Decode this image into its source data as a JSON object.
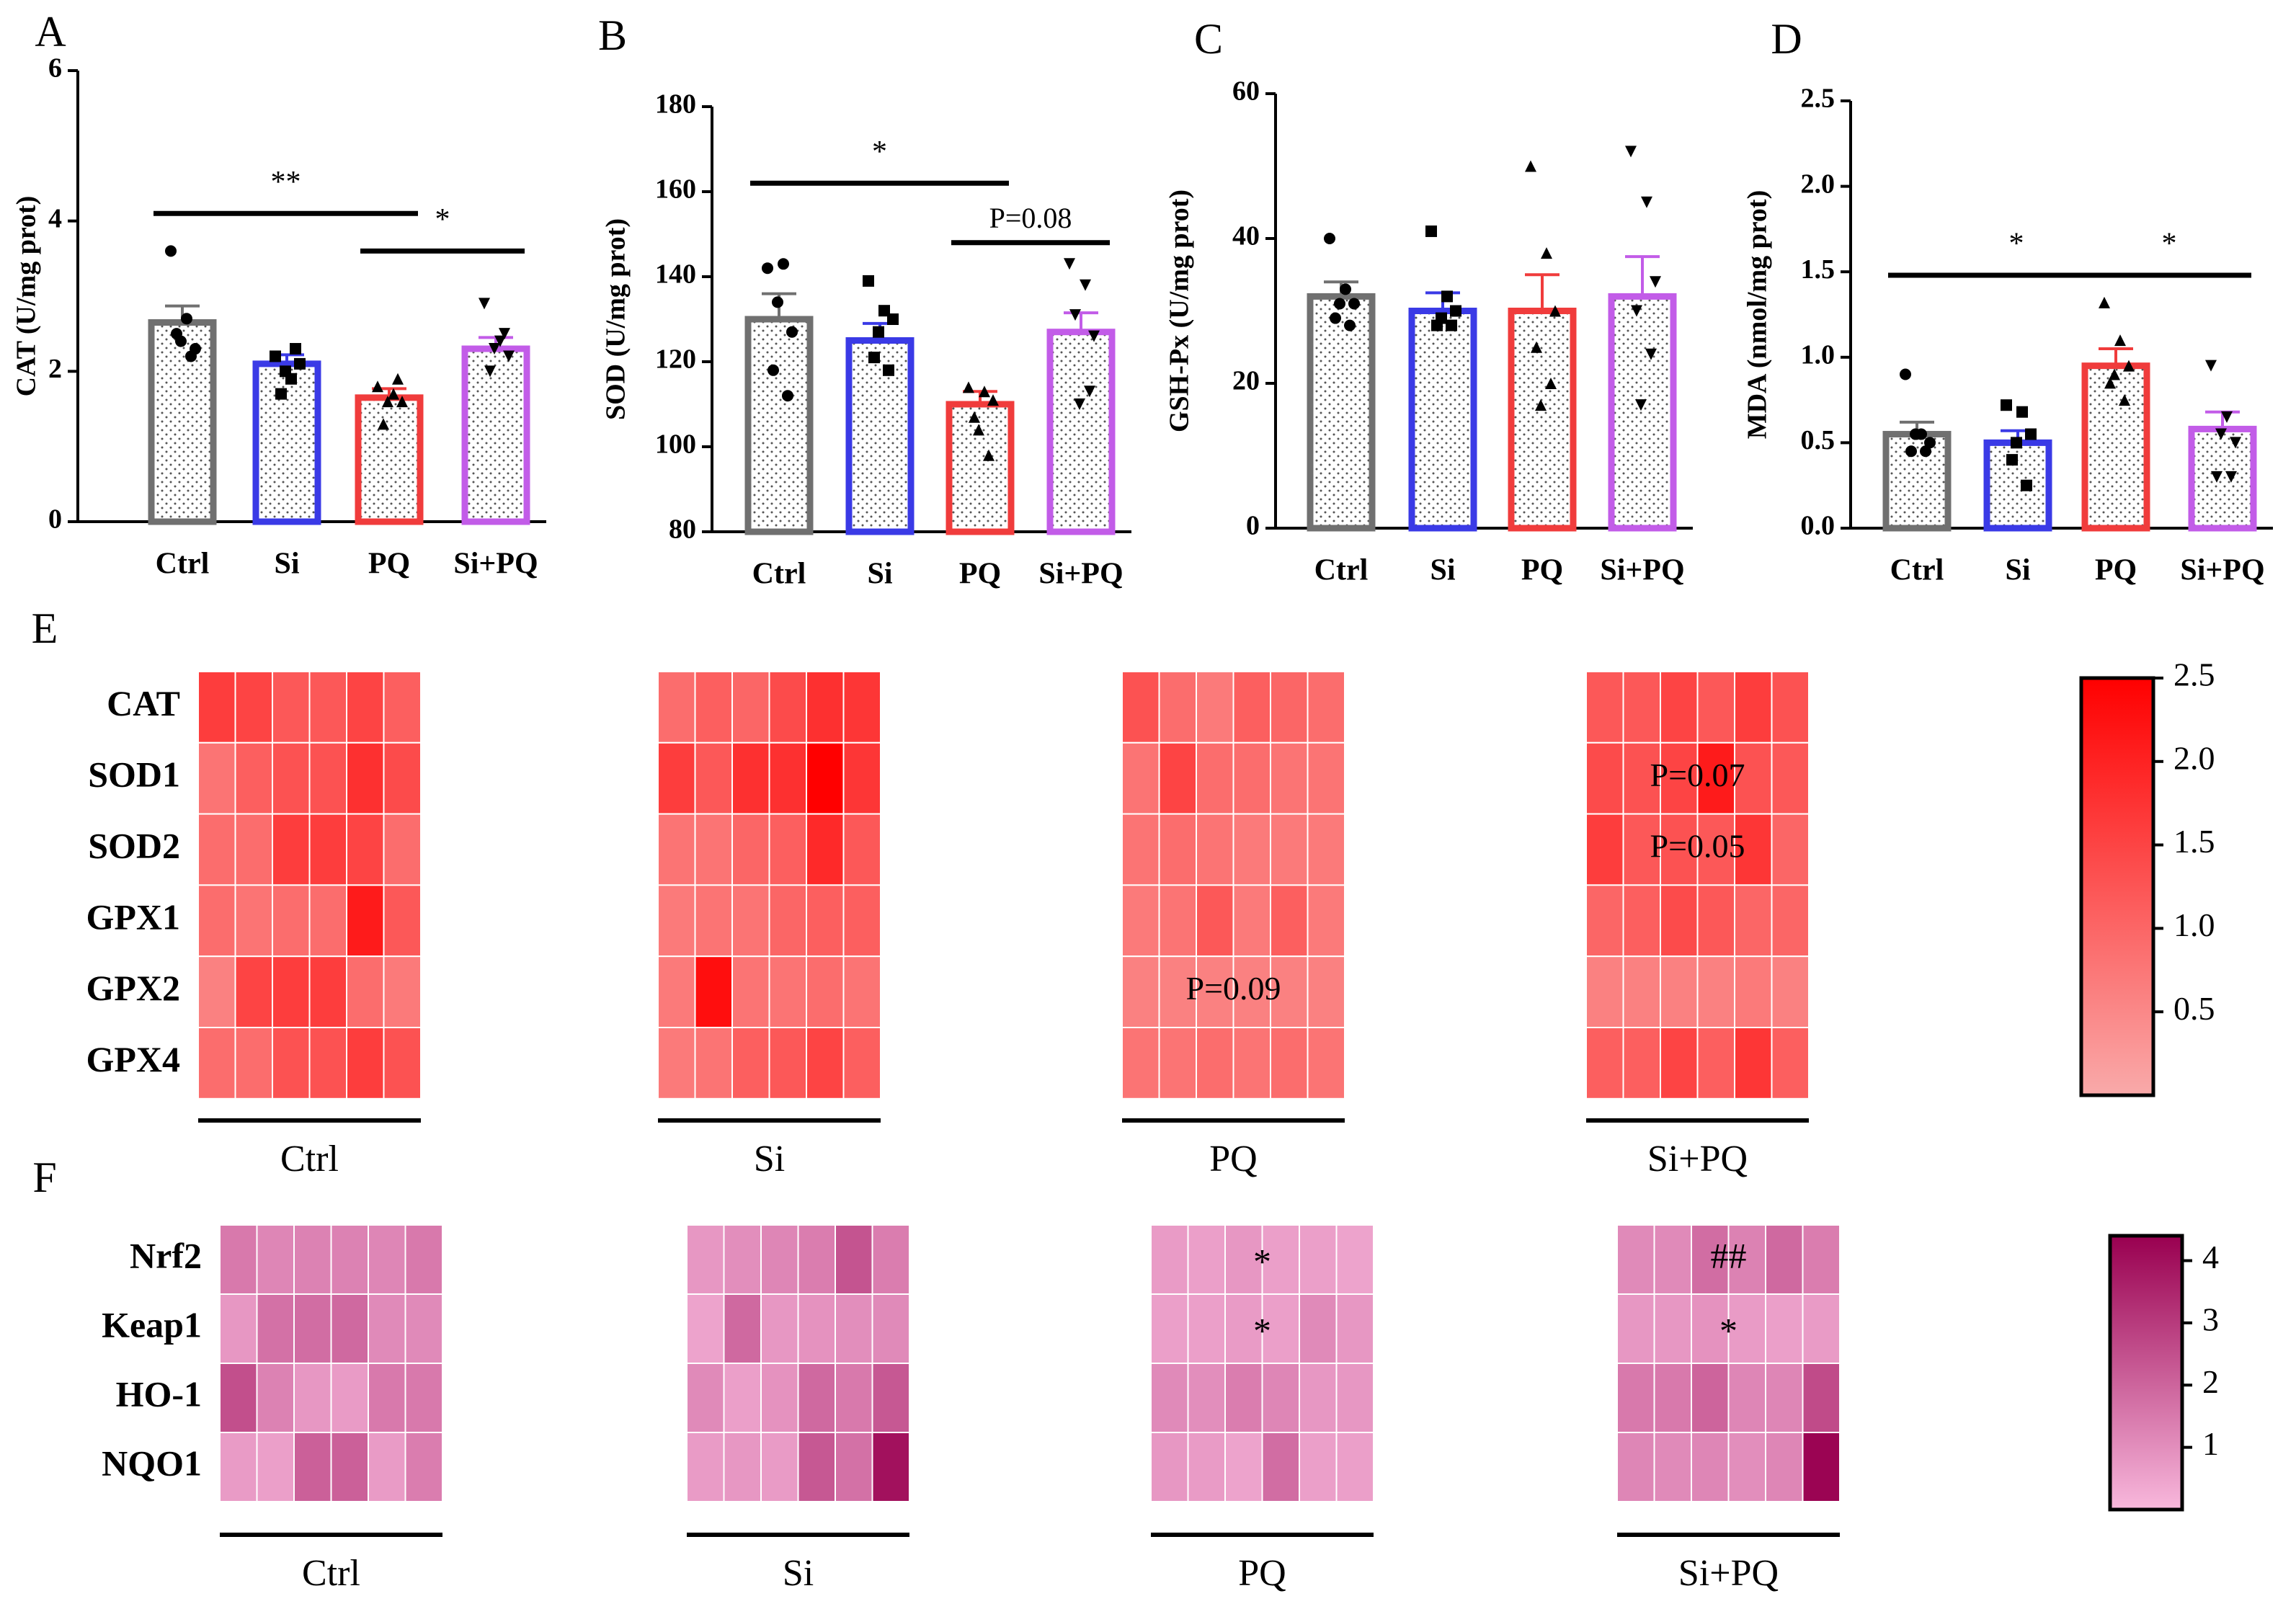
{
  "colors": {
    "Ctrl": "#707070",
    "Si": "#3a3ae6",
    "PQ": "#f03c3c",
    "Si+PQ": "#c25ce8",
    "heatE_low": "#f9aaaa",
    "heatE_high": "#ff0000",
    "heatF_low": "#f8b8dc",
    "heatF_high": "#990050"
  },
  "chart_data": [
    {
      "panel": "A",
      "type": "bar",
      "ylabel": "CAT (U/mg prot)",
      "categories": [
        "Ctrl",
        "Si",
        "PQ",
        "Si+PQ"
      ],
      "values": [
        2.65,
        2.1,
        1.65,
        2.3
      ],
      "sem": [
        0.22,
        0.12,
        0.12,
        0.15
      ],
      "points": [
        [
          3.6,
          2.7,
          2.3,
          2.5,
          2.2,
          2.4
        ],
        [
          2.2,
          1.9,
          2.1,
          1.7,
          2.3,
          2.0
        ],
        [
          1.8,
          1.7,
          1.6,
          1.3,
          1.9,
          1.6
        ],
        [
          2.9,
          2.4,
          2.2,
          2.0,
          2.5,
          2.3
        ]
      ],
      "ylim": [
        0,
        6
      ],
      "yticks": [
        0,
        2,
        4,
        6
      ],
      "yticklabels": [
        "0",
        "2",
        "4",
        "6"
      ],
      "annotations": [
        {
          "from": 0,
          "to": 2,
          "y": 4.1,
          "label": "**"
        },
        {
          "from": 2,
          "to": 3,
          "y": 3.6,
          "label": "*"
        }
      ]
    },
    {
      "panel": "B",
      "type": "bar",
      "ylabel": "SOD (U/mg prot)",
      "categories": [
        "Ctrl",
        "Si",
        "PQ",
        "Si+PQ"
      ],
      "values": [
        130,
        125,
        110,
        127
      ],
      "sem": [
        6,
        4,
        3,
        4.5
      ],
      "points": [
        [
          142,
          143,
          127,
          118,
          112,
          134
        ],
        [
          139,
          132,
          130,
          121,
          118,
          127
        ],
        [
          114,
          113,
          111,
          107,
          98,
          104
        ],
        [
          143,
          138,
          126,
          131,
          113,
          110
        ]
      ],
      "ylim": [
        80,
        180
      ],
      "yticks": [
        80,
        100,
        120,
        140,
        160,
        180
      ],
      "yticklabels": [
        "80",
        "100",
        "120",
        "140",
        "160",
        "180"
      ],
      "annotations": [
        {
          "from": 0,
          "to": 2,
          "y": 162,
          "label": "*"
        },
        {
          "from": 2,
          "to": 3,
          "y": 148,
          "label": "P=0.08"
        }
      ]
    },
    {
      "panel": "C",
      "type": "bar",
      "ylabel": "GSH-Px (U/mg prot)",
      "categories": [
        "Ctrl",
        "Si",
        "PQ",
        "Si+PQ"
      ],
      "values": [
        32,
        30,
        30,
        32
      ],
      "sem": [
        2,
        2.5,
        5,
        5.5
      ],
      "points": [
        [
          40,
          33,
          31,
          29,
          28,
          31
        ],
        [
          41,
          32,
          30,
          28,
          28,
          29
        ],
        [
          50,
          38,
          30,
          25,
          20,
          17
        ],
        [
          52,
          45,
          34,
          30,
          24,
          17
        ]
      ],
      "ylim": [
        0,
        60
      ],
      "yticks": [
        0,
        20,
        40,
        60
      ],
      "yticklabels": [
        "0",
        "20",
        "40",
        "60"
      ],
      "annotations": []
    },
    {
      "panel": "D",
      "type": "bar",
      "ylabel": "MDA (nmol/mg prot)",
      "categories": [
        "Ctrl",
        "Si",
        "PQ",
        "Si+PQ"
      ],
      "values": [
        0.55,
        0.5,
        0.95,
        0.58
      ],
      "sem": [
        0.07,
        0.07,
        0.1,
        0.1
      ],
      "points": [
        [
          0.9,
          0.55,
          0.5,
          0.45,
          0.45,
          0.55
        ],
        [
          0.72,
          0.68,
          0.55,
          0.4,
          0.25,
          0.5
        ],
        [
          1.32,
          1.1,
          0.95,
          0.85,
          0.75,
          0.9
        ],
        [
          0.95,
          0.65,
          0.5,
          0.3,
          0.3,
          0.55
        ]
      ],
      "ylim": [
        0,
        2.5
      ],
      "yticks": [
        0,
        0.5,
        1.0,
        1.5,
        2.0,
        2.5
      ],
      "yticklabels": [
        "0.0",
        "0.5",
        "1.0",
        "1.5",
        "2.0",
        "2.5"
      ],
      "annotations": [
        {
          "from": 0,
          "to": 2,
          "y": 1.48,
          "label": "*"
        },
        {
          "from": 2,
          "to": 3,
          "y": 1.48,
          "label": "*"
        }
      ]
    },
    {
      "panel": "E",
      "type": "heatmap",
      "rows": [
        "CAT",
        "SOD1",
        "SOD2",
        "GPX1",
        "GPX2",
        "GPX4"
      ],
      "groups": [
        "Ctrl",
        "Si",
        "PQ",
        "Si+PQ"
      ],
      "values": [
        [
          1.6,
          1.5,
          1.2,
          1.2,
          1.5,
          1.1,
          0.9,
          1.1,
          1.0,
          1.4,
          1.8,
          1.7,
          1.3,
          0.9,
          0.7,
          1.1,
          1.0,
          0.9,
          1.2,
          1.2,
          1.5,
          1.2,
          1.6,
          1.3
        ],
        [
          0.8,
          1.1,
          1.3,
          1.3,
          1.8,
          1.4,
          1.6,
          1.2,
          1.8,
          1.8,
          2.5,
          1.7,
          0.8,
          1.5,
          0.9,
          0.9,
          0.8,
          0.8,
          1.4,
          1.3,
          1.5,
          2.1,
          1.3,
          1.2
        ],
        [
          0.9,
          0.9,
          1.6,
          1.6,
          1.5,
          0.9,
          0.8,
          0.8,
          1.0,
          1.1,
          1.9,
          1.2,
          0.8,
          0.9,
          0.8,
          0.7,
          0.7,
          0.7,
          1.6,
          1.2,
          1.3,
          1.2,
          1.7,
          1.0
        ],
        [
          0.9,
          0.8,
          0.9,
          0.9,
          2.1,
          1.2,
          0.7,
          0.8,
          0.8,
          1.0,
          1.1,
          1.1,
          0.7,
          0.8,
          1.2,
          0.7,
          1.1,
          0.7,
          1.0,
          1.1,
          1.4,
          1.2,
          1.0,
          1.0
        ],
        [
          0.6,
          1.5,
          1.6,
          1.6,
          0.9,
          0.7,
          0.7,
          2.3,
          0.8,
          0.8,
          0.9,
          0.8,
          0.6,
          0.6,
          0.6,
          0.6,
          0.6,
          0.6,
          0.6,
          0.6,
          0.6,
          0.6,
          0.7,
          0.6
        ],
        [
          0.9,
          0.9,
          1.3,
          1.3,
          1.6,
          1.3,
          0.7,
          0.8,
          1.1,
          1.2,
          1.5,
          1.1,
          0.8,
          0.8,
          0.9,
          0.8,
          0.9,
          0.8,
          1.1,
          1.1,
          1.5,
          1.1,
          1.7,
          1.1
        ]
      ],
      "colorbar": {
        "range": [
          0,
          2.5
        ],
        "ticks": [
          "2.5",
          "2.0",
          "1.5",
          "1.0",
          "0.5"
        ]
      },
      "annotations": [
        {
          "row": 1,
          "group": "Si+PQ",
          "label": "P=0.07"
        },
        {
          "row": 2,
          "group": "Si+PQ",
          "label": "P=0.05"
        },
        {
          "row": 4,
          "group": "PQ",
          "label": "P=0.09"
        }
      ]
    },
    {
      "panel": "F",
      "type": "heatmap",
      "rows": [
        "Nrf2",
        "Keap1",
        "HO-1",
        "NQO1"
      ],
      "groups": [
        "Ctrl",
        "Si",
        "PQ",
        "Si+PQ"
      ],
      "values": [
        [
          1.5,
          1.2,
          1.3,
          1.3,
          1.2,
          1.5,
          0.8,
          1.0,
          1.2,
          1.4,
          2.4,
          1.4,
          0.7,
          0.6,
          0.8,
          0.6,
          0.6,
          0.5,
          1.1,
          1.1,
          1.8,
          1.3,
          1.9,
          1.4
        ],
        [
          0.8,
          1.7,
          1.8,
          1.9,
          1.1,
          1.1,
          0.5,
          1.9,
          0.8,
          0.9,
          1.0,
          1.1,
          0.6,
          0.6,
          0.7,
          0.6,
          1.1,
          0.8,
          0.8,
          0.8,
          0.9,
          0.7,
          0.6,
          0.7
        ],
        [
          2.5,
          1.3,
          0.8,
          0.7,
          1.5,
          1.5,
          1.1,
          0.6,
          0.9,
          1.9,
          1.5,
          2.3,
          1.1,
          1.0,
          1.4,
          1.2,
          0.8,
          0.8,
          1.5,
          1.5,
          2.0,
          1.2,
          1.2,
          2.6
        ],
        [
          0.7,
          0.6,
          2.1,
          2.1,
          0.7,
          1.4,
          0.7,
          0.8,
          0.7,
          2.3,
          1.7,
          4.0,
          0.8,
          0.7,
          0.5,
          1.8,
          0.6,
          0.6,
          1.2,
          1.1,
          1.2,
          1.0,
          1.2,
          4.3
        ]
      ],
      "colorbar": {
        "range": [
          0,
          4.4
        ],
        "ticks": [
          "4",
          "3",
          "2",
          "1"
        ]
      },
      "annotations": [
        {
          "row": 0,
          "group": "PQ",
          "label": "*"
        },
        {
          "row": 1,
          "group": "PQ",
          "label": "*"
        },
        {
          "row": 0,
          "group": "Si+PQ",
          "label": "##"
        },
        {
          "row": 1,
          "group": "Si+PQ",
          "label": "*"
        }
      ]
    }
  ]
}
